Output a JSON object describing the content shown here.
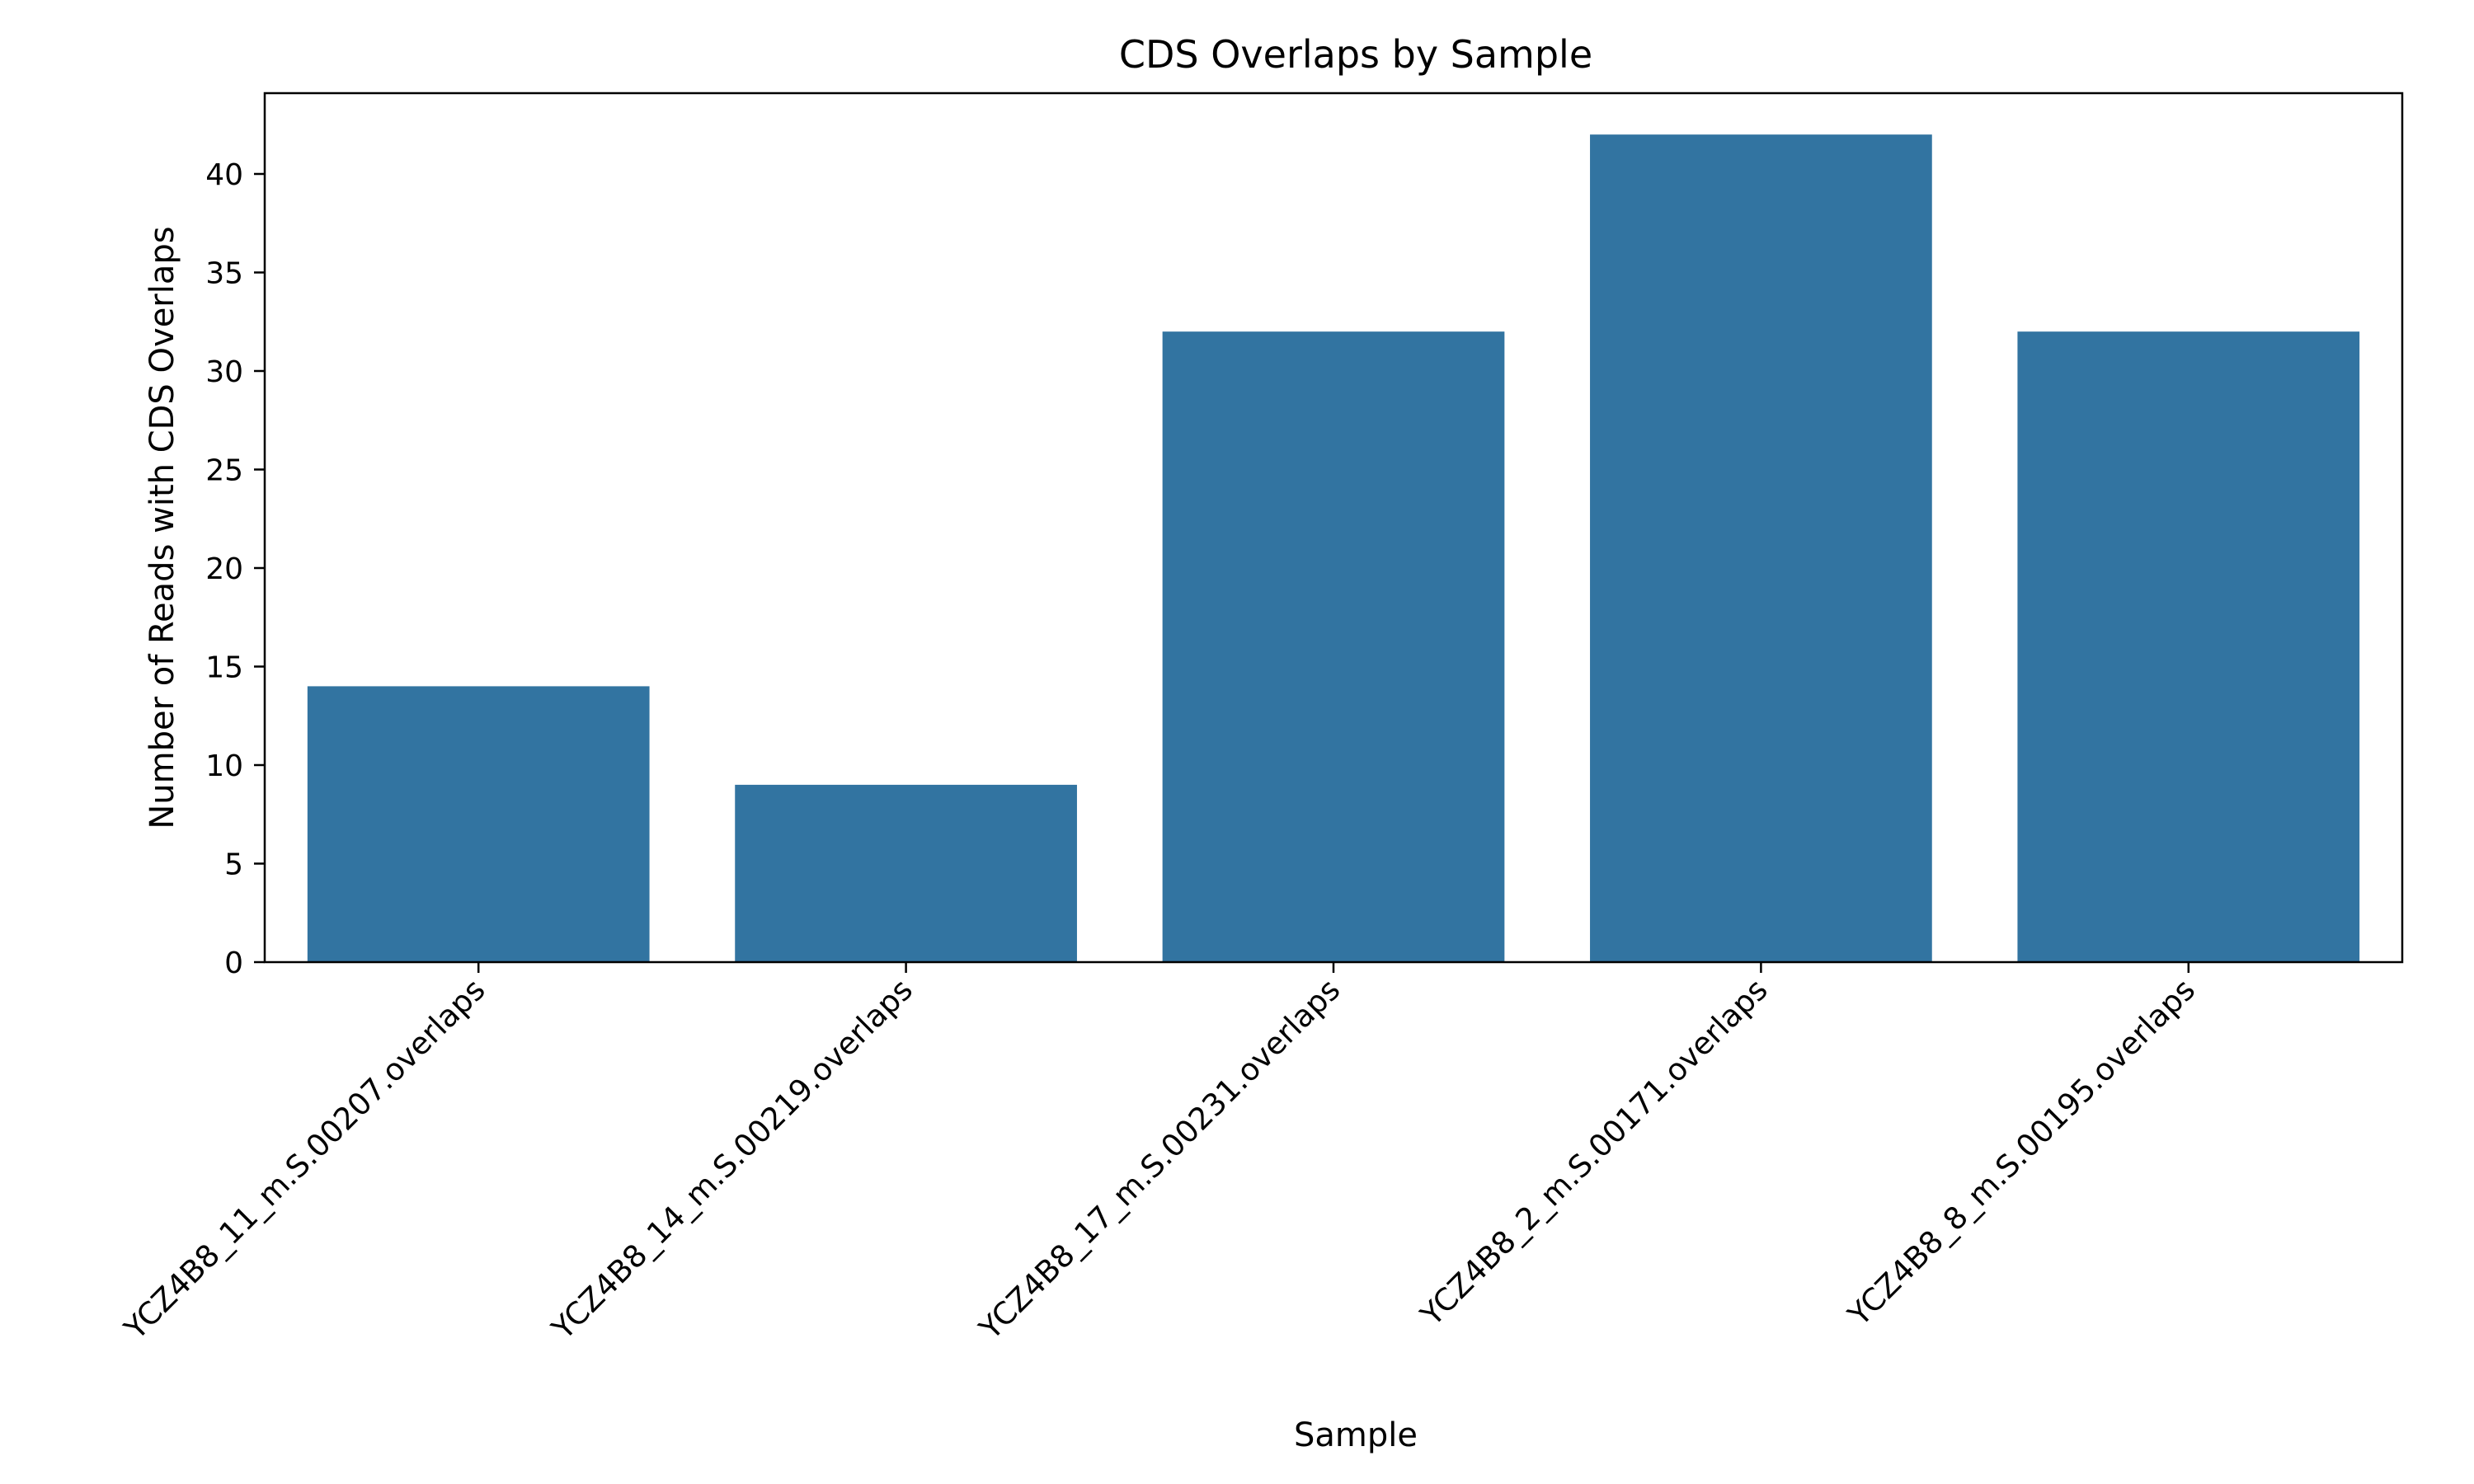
{
  "chart_data": {
    "type": "bar",
    "title": "CDS Overlaps by Sample",
    "xlabel": "Sample",
    "ylabel": "Number of Reads with CDS Overlaps",
    "categories": [
      "YCZ4B8_11_m.S.00207.overlaps",
      "YCZ4B8_14_m.S.00219.overlaps",
      "YCZ4B8_17_m.S.00231.overlaps",
      "YCZ4B8_2_m.S.00171.overlaps",
      "YCZ4B8_8_m.S.00195.overlaps"
    ],
    "values": [
      14,
      9,
      32,
      42,
      32
    ],
    "ylim": [
      0,
      44.1
    ],
    "yticks": [
      0,
      5,
      10,
      15,
      20,
      25,
      30,
      35,
      40
    ],
    "bar_color": "#3274a1",
    "grid": false,
    "legend": "none"
  }
}
